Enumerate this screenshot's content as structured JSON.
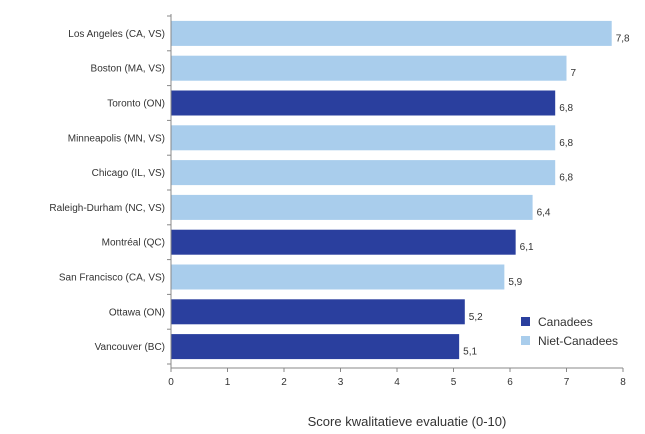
{
  "chart_data": {
    "type": "bar",
    "orientation": "horizontal",
    "categories": [
      "Los Angeles (CA, VS)",
      "Boston (MA, VS)",
      "Toronto (ON)",
      "Minneapolis (MN, VS)",
      "Chicago (IL, VS)",
      "Raleigh-Durham (NC, VS)",
      "Montréal (QC)",
      "San Francisco (CA, VS)",
      "Ottawa (ON)",
      "Vancouver (BC)"
    ],
    "values": [
      7.8,
      7,
      6.8,
      6.8,
      6.8,
      6.4,
      6.1,
      5.9,
      5.2,
      5.1
    ],
    "value_labels": [
      "7,8",
      "7",
      "6,8",
      "6,8",
      "6,8",
      "6,4",
      "6,1",
      "5,9",
      "5,2",
      "5,1"
    ],
    "groups": [
      "Niet-Canadees",
      "Niet-Canadees",
      "Canadees",
      "Niet-Canadees",
      "Niet-Canadees",
      "Niet-Canadees",
      "Canadees",
      "Niet-Canadees",
      "Canadees",
      "Canadees"
    ],
    "legend": [
      {
        "name": "Canadees",
        "color": "#2a3f9e"
      },
      {
        "name": "Niet-Canadees",
        "color": "#a9cdec"
      }
    ],
    "legend_position": "bottom-right",
    "title": "",
    "xlabel": "Score kwalitatieve evaluatie (0-10)",
    "ylabel": "",
    "xlim": [
      0,
      8
    ],
    "xticks": [
      0,
      1,
      2,
      3,
      4,
      5,
      6,
      7,
      8
    ],
    "grid": false
  }
}
